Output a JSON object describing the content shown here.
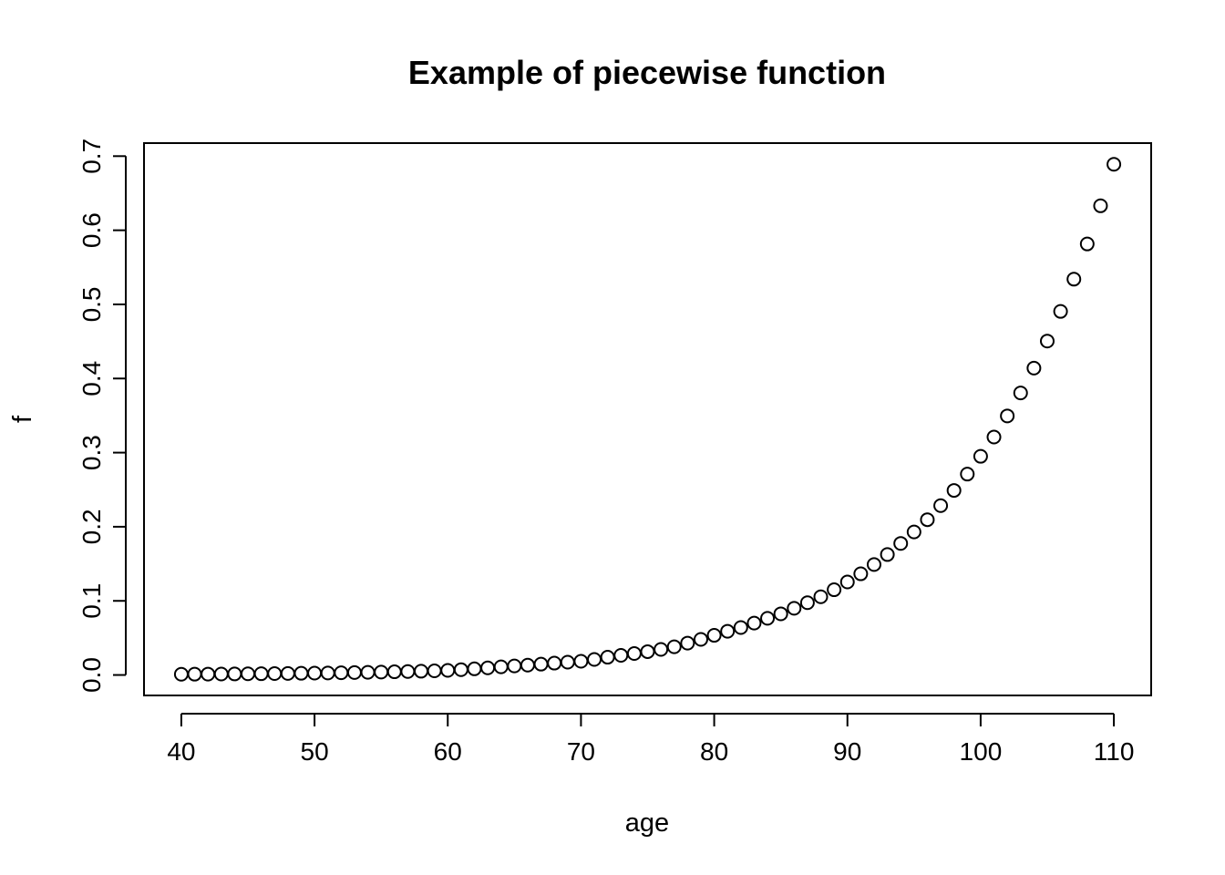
{
  "chart_data": {
    "type": "scatter",
    "title": "Example of piecewise function",
    "xlabel": "age",
    "ylabel": "f",
    "xlim": [
      37.2,
      112.8
    ],
    "ylim": [
      -0.0276,
      0.7176
    ],
    "x_ticks": [
      40,
      50,
      60,
      70,
      80,
      90,
      100,
      110
    ],
    "x_tick_labels": [
      "40",
      "50",
      "60",
      "70",
      "80",
      "90",
      "100",
      "110"
    ],
    "y_ticks": [
      0.0,
      0.1,
      0.2,
      0.3,
      0.4,
      0.5,
      0.6,
      0.7
    ],
    "y_tick_labels": [
      "0.0",
      "0.1",
      "0.2",
      "0.3",
      "0.4",
      "0.5",
      "0.6",
      "0.7"
    ],
    "grid": false,
    "legend": "none",
    "marker": "open-circle",
    "x": [
      40,
      41,
      42,
      43,
      44,
      45,
      46,
      47,
      48,
      49,
      50,
      51,
      52,
      53,
      54,
      55,
      56,
      57,
      58,
      59,
      60,
      61,
      62,
      63,
      64,
      65,
      66,
      67,
      68,
      69,
      70,
      71,
      72,
      73,
      74,
      75,
      76,
      77,
      78,
      79,
      80,
      81,
      82,
      83,
      84,
      85,
      86,
      87,
      88,
      89,
      90,
      91,
      92,
      93,
      94,
      95,
      96,
      97,
      98,
      99,
      100,
      101,
      102,
      103,
      104,
      105,
      106,
      107,
      108,
      109,
      110
    ],
    "y": [
      0.001,
      0.0011,
      0.0012,
      0.0013,
      0.0014,
      0.0016,
      0.0017,
      0.0019,
      0.0021,
      0.0023,
      0.0025,
      0.0027,
      0.003,
      0.0033,
      0.0036,
      0.0039,
      0.0043,
      0.0047,
      0.0051,
      0.0056,
      0.0062,
      0.0072,
      0.0083,
      0.0096,
      0.011,
      0.0122,
      0.0133,
      0.0146,
      0.016,
      0.0173,
      0.0185,
      0.021,
      0.024,
      0.0265,
      0.029,
      0.0315,
      0.0345,
      0.038,
      0.043,
      0.048,
      0.0535,
      0.059,
      0.064,
      0.07,
      0.0765,
      0.0825,
      0.09,
      0.0975,
      0.1055,
      0.115,
      0.1255,
      0.1365,
      0.149,
      0.1625,
      0.1775,
      0.193,
      0.2095,
      0.2285,
      0.249,
      0.271,
      0.295,
      0.321,
      0.3495,
      0.3805,
      0.414,
      0.4505,
      0.4905,
      0.534,
      0.5815,
      0.633,
      0.689
    ]
  }
}
